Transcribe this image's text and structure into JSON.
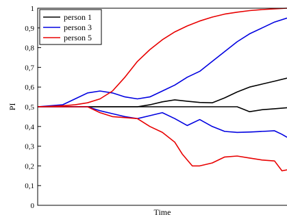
{
  "chart_data": {
    "type": "line",
    "xlabel": "Time",
    "ylabel": "PI",
    "ylim": [
      0,
      1
    ],
    "xlim": [
      0,
      1
    ],
    "yticks": [
      0,
      0.1,
      0.2,
      0.3,
      0.4,
      0.5,
      0.6,
      0.7,
      0.8,
      0.9,
      1
    ],
    "ytick_labels": [
      "0",
      "0,1",
      "0,2",
      "0,3",
      "0,4",
      "0,5",
      "0,6",
      "0,7",
      "0,8",
      "0,9",
      "1"
    ],
    "grid": false,
    "legend_position": "top-left",
    "colors": {
      "person 1": "#000000",
      "person 3": "#0000e0",
      "person 5": "#e80000"
    },
    "series": [
      {
        "name": "person 1",
        "group": "person 1",
        "show_in_legend": true,
        "x": [
          0,
          0.05,
          0.1,
          0.2,
          0.3,
          0.4,
          0.45,
          0.5,
          0.55,
          0.6,
          0.65,
          0.7,
          0.75,
          0.8,
          0.85,
          0.9,
          0.95,
          1
        ],
        "y": [
          0.5,
          0.5,
          0.5,
          0.5,
          0.5,
          0.5,
          0.51,
          0.525,
          0.535,
          0.528,
          0.522,
          0.52,
          0.545,
          0.575,
          0.6,
          0.615,
          0.63,
          0.645
        ]
      },
      {
        "name": "person 1",
        "group": "person 1",
        "show_in_legend": false,
        "x": [
          0,
          0.2,
          0.4,
          0.6,
          0.7,
          0.8,
          0.82,
          0.85,
          0.9,
          0.95,
          1
        ],
        "y": [
          0.5,
          0.5,
          0.5,
          0.5,
          0.5,
          0.5,
          0.49,
          0.475,
          0.485,
          0.49,
          0.495
        ]
      },
      {
        "name": "person 3",
        "group": "person 3",
        "show_in_legend": true,
        "x": [
          0,
          0.05,
          0.1,
          0.15,
          0.2,
          0.25,
          0.3,
          0.35,
          0.4,
          0.45,
          0.5,
          0.55,
          0.6,
          0.65,
          0.7,
          0.75,
          0.8,
          0.85,
          0.9,
          0.95,
          1
        ],
        "y": [
          0.5,
          0.505,
          0.51,
          0.54,
          0.57,
          0.58,
          0.57,
          0.55,
          0.54,
          0.55,
          0.58,
          0.61,
          0.65,
          0.68,
          0.73,
          0.78,
          0.83,
          0.87,
          0.9,
          0.93,
          0.95
        ]
      },
      {
        "name": "person 3",
        "group": "person 3",
        "show_in_legend": false,
        "x": [
          0,
          0.1,
          0.2,
          0.25,
          0.3,
          0.35,
          0.4,
          0.45,
          0.5,
          0.55,
          0.6,
          0.65,
          0.7,
          0.75,
          0.8,
          0.85,
          0.9,
          0.95,
          0.98,
          1
        ],
        "y": [
          0.5,
          0.5,
          0.5,
          0.48,
          0.465,
          0.45,
          0.44,
          0.455,
          0.47,
          0.44,
          0.405,
          0.435,
          0.4,
          0.375,
          0.37,
          0.372,
          0.375,
          0.378,
          0.36,
          0.345
        ]
      },
      {
        "name": "person 5",
        "group": "person 5",
        "show_in_legend": true,
        "x": [
          0,
          0.05,
          0.1,
          0.15,
          0.2,
          0.25,
          0.3,
          0.35,
          0.4,
          0.45,
          0.5,
          0.55,
          0.6,
          0.65,
          0.7,
          0.75,
          0.8,
          0.85,
          0.9,
          0.95,
          1
        ],
        "y": [
          0.5,
          0.502,
          0.505,
          0.51,
          0.52,
          0.54,
          0.58,
          0.65,
          0.73,
          0.79,
          0.84,
          0.88,
          0.91,
          0.935,
          0.955,
          0.97,
          0.98,
          0.988,
          0.993,
          0.997,
          1
        ]
      },
      {
        "name": "person 5",
        "group": "person 5",
        "show_in_legend": false,
        "x": [
          0,
          0.1,
          0.2,
          0.25,
          0.3,
          0.35,
          0.4,
          0.45,
          0.5,
          0.55,
          0.58,
          0.62,
          0.65,
          0.7,
          0.75,
          0.8,
          0.85,
          0.9,
          0.95,
          0.98,
          1
        ],
        "y": [
          0.5,
          0.5,
          0.5,
          0.47,
          0.45,
          0.445,
          0.44,
          0.4,
          0.37,
          0.32,
          0.26,
          0.2,
          0.2,
          0.215,
          0.245,
          0.25,
          0.24,
          0.23,
          0.225,
          0.175,
          0.18
        ]
      }
    ]
  }
}
